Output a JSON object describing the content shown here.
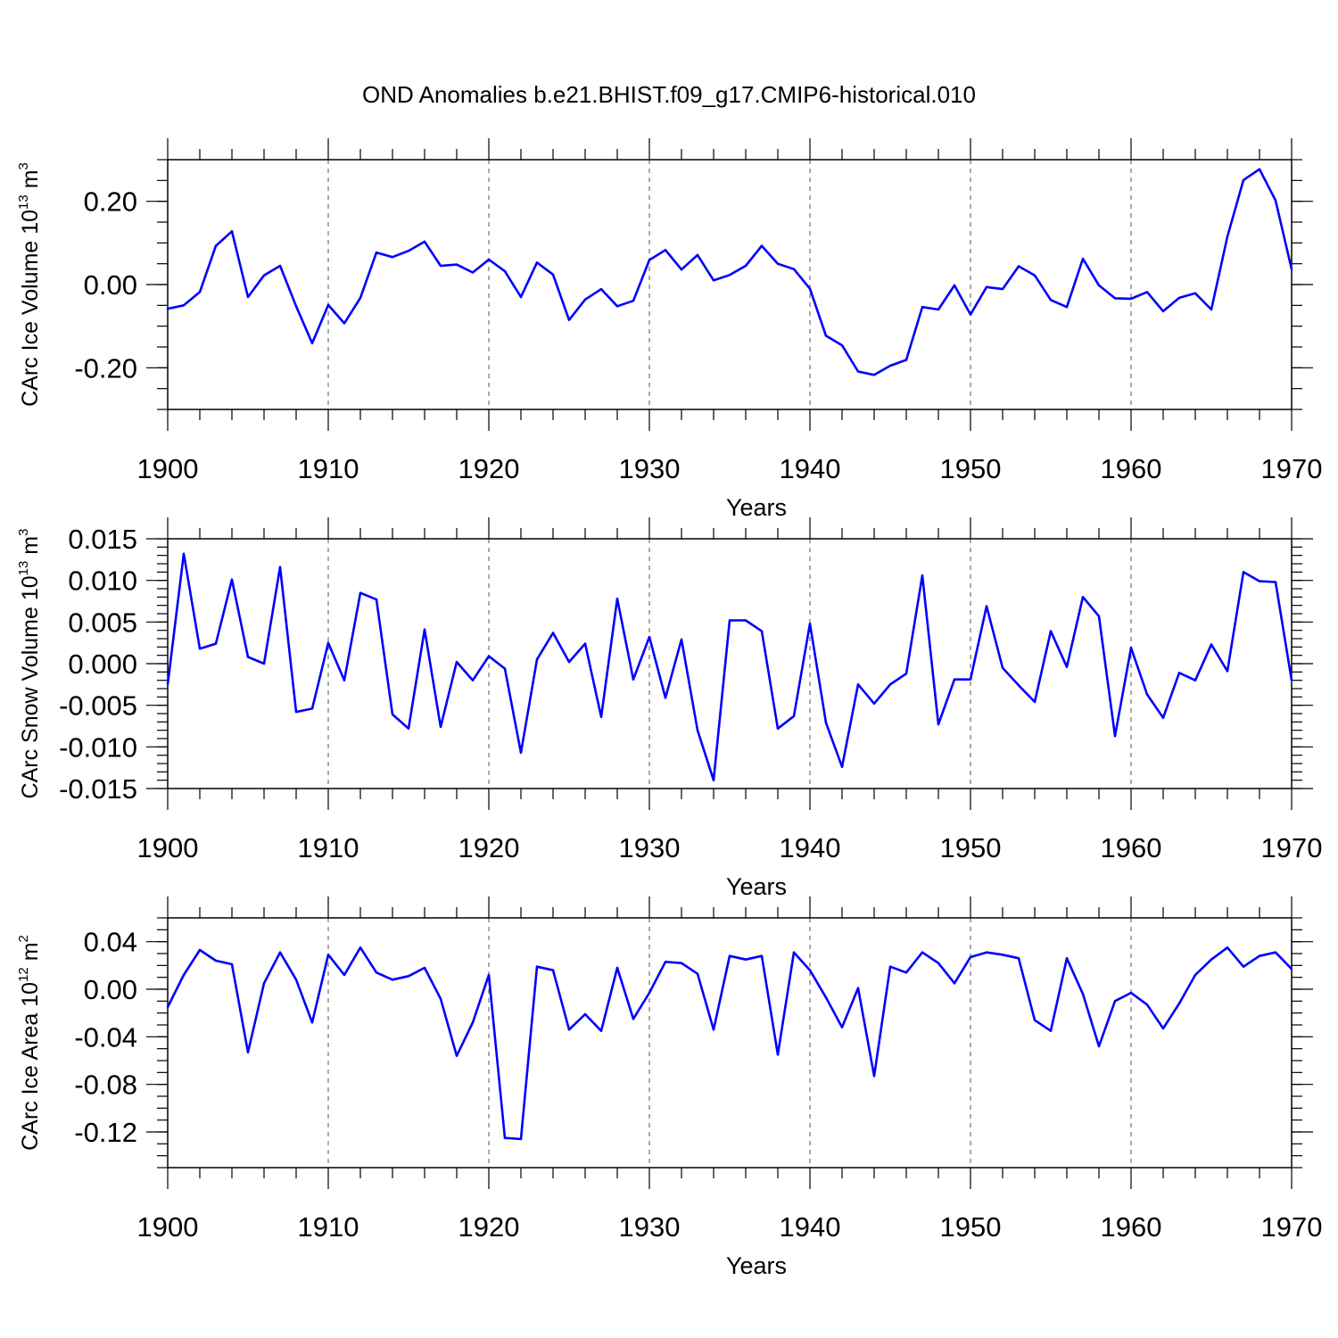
{
  "title": "OND Anomalies b.e21.BHIST.f09_g17.CMIP6-historical.010",
  "chart_data": [
    {
      "type": "line",
      "ylabel": "CArc Ice Volume 10",
      "ylabel_exp": "13",
      "ylabel_unit": " m",
      "ylabel_unit_exp": "3",
      "xlabel": "Years",
      "xlim": [
        1900,
        1970
      ],
      "ylim": [
        -0.3,
        0.3
      ],
      "yticks": [
        -0.2,
        0.0,
        0.2
      ],
      "ytick_labels": [
        "-0.20",
        "0.00",
        "0.20"
      ],
      "yminor_step": 0.05,
      "xticks": [
        1900,
        1910,
        1920,
        1930,
        1940,
        1950,
        1960,
        1970
      ],
      "xtick_labels": [
        "1900",
        "1910",
        "1920",
        "1930",
        "1940",
        "1950",
        "1960",
        "1970"
      ],
      "series": [
        {
          "name": "CArc Ice Volume",
          "color": "#0000ff",
          "x": [
            1900,
            1901,
            1902,
            1903,
            1904,
            1905,
            1906,
            1907,
            1908,
            1909,
            1910,
            1911,
            1912,
            1913,
            1914,
            1915,
            1916,
            1917,
            1918,
            1919,
            1920,
            1921,
            1922,
            1923,
            1924,
            1925,
            1926,
            1927,
            1928,
            1929,
            1930,
            1931,
            1932,
            1933,
            1934,
            1935,
            1936,
            1937,
            1938,
            1939,
            1940,
            1941,
            1942,
            1943,
            1944,
            1945,
            1946,
            1947,
            1948,
            1949,
            1950,
            1951,
            1952,
            1953,
            1954,
            1955,
            1956,
            1957,
            1958,
            1959,
            1960,
            1961,
            1962,
            1963,
            1964,
            1965,
            1966,
            1967,
            1968,
            1969,
            1970
          ],
          "values": [
            -0.058,
            -0.05,
            -0.018,
            0.093,
            0.128,
            -0.03,
            0.022,
            0.045,
            -0.052,
            -0.141,
            -0.049,
            -0.093,
            -0.032,
            0.077,
            0.066,
            0.081,
            0.103,
            0.045,
            0.048,
            0.029,
            0.06,
            0.032,
            -0.03,
            0.053,
            0.024,
            -0.085,
            -0.036,
            -0.011,
            -0.052,
            -0.039,
            0.059,
            0.083,
            0.036,
            0.071,
            0.01,
            0.023,
            0.045,
            0.093,
            0.05,
            0.037,
            -0.01,
            -0.123,
            -0.146,
            -0.209,
            -0.217,
            -0.195,
            -0.181,
            -0.054,
            -0.06,
            -0.002,
            -0.072,
            -0.006,
            -0.011,
            0.044,
            0.022,
            -0.037,
            -0.054,
            0.062,
            -0.002,
            -0.033,
            -0.034,
            -0.018,
            -0.064,
            -0.032,
            -0.021,
            -0.06,
            0.115,
            0.251,
            0.277,
            0.202,
            0.037
          ]
        }
      ]
    },
    {
      "type": "line",
      "ylabel": "CArc Snow Volume 10",
      "ylabel_exp": "13",
      "ylabel_unit": " m",
      "ylabel_unit_exp": "3",
      "xlabel": "Years",
      "xlim": [
        1900,
        1970
      ],
      "ylim": [
        -0.015,
        0.015
      ],
      "yticks": [
        -0.015,
        -0.01,
        -0.005,
        0.0,
        0.005,
        0.01,
        0.015
      ],
      "ytick_labels": [
        "-0.015",
        "-0.010",
        "-0.005",
        "0.000",
        "0.005",
        "0.010",
        "0.015"
      ],
      "yminor_step": 0.001,
      "xticks": [
        1900,
        1910,
        1920,
        1930,
        1940,
        1950,
        1960,
        1970
      ],
      "xtick_labels": [
        "1900",
        "1910",
        "1920",
        "1930",
        "1940",
        "1950",
        "1960",
        "1970"
      ],
      "series": [
        {
          "name": "CArc Snow Volume",
          "color": "#0000ff",
          "x": [
            1900,
            1901,
            1902,
            1903,
            1904,
            1905,
            1906,
            1907,
            1908,
            1909,
            1910,
            1911,
            1912,
            1913,
            1914,
            1915,
            1916,
            1917,
            1918,
            1919,
            1920,
            1921,
            1922,
            1923,
            1924,
            1925,
            1926,
            1927,
            1928,
            1929,
            1930,
            1931,
            1932,
            1933,
            1934,
            1935,
            1936,
            1937,
            1938,
            1939,
            1940,
            1941,
            1942,
            1943,
            1944,
            1945,
            1946,
            1947,
            1948,
            1949,
            1950,
            1951,
            1952,
            1953,
            1954,
            1955,
            1956,
            1957,
            1958,
            1959,
            1960,
            1961,
            1962,
            1963,
            1964,
            1965,
            1966,
            1967,
            1968,
            1969,
            1970
          ],
          "values": [
            -0.0025,
            0.0132,
            0.0018,
            0.0024,
            0.0101,
            0.0008,
            0.0,
            0.0116,
            -0.0058,
            -0.0054,
            0.0025,
            -0.002,
            0.0085,
            0.0077,
            -0.0061,
            -0.0078,
            0.0041,
            -0.0076,
            0.0002,
            -0.002,
            0.0009,
            -0.0006,
            -0.0107,
            0.0005,
            0.0037,
            0.0002,
            0.0024,
            -0.0064,
            0.0078,
            -0.0019,
            0.0032,
            -0.0041,
            0.0029,
            -0.008,
            -0.014,
            0.0052,
            0.0052,
            0.0039,
            -0.0078,
            -0.0063,
            0.0048,
            -0.0071,
            -0.0124,
            -0.0025,
            -0.0048,
            -0.0025,
            -0.0012,
            0.0106,
            -0.0073,
            -0.0019,
            -0.0019,
            0.0069,
            -0.0005,
            -0.0026,
            -0.0046,
            0.0039,
            -0.0004,
            0.008,
            0.0057,
            -0.0087,
            0.0019,
            -0.0037,
            -0.0065,
            -0.0011,
            -0.002,
            0.0023,
            -0.0009,
            0.011,
            0.0099,
            0.0098,
            -0.002
          ]
        }
      ]
    },
    {
      "type": "line",
      "ylabel": "CArc Ice Area 10",
      "ylabel_exp": "12",
      "ylabel_unit": " m",
      "ylabel_unit_exp": "2",
      "xlabel": "Years",
      "xlim": [
        1900,
        1970
      ],
      "ylim": [
        -0.15,
        0.06
      ],
      "yticks": [
        -0.12,
        -0.08,
        -0.04,
        0.0,
        0.04
      ],
      "ytick_labels": [
        "-0.12",
        "-0.08",
        "-0.04",
        "0.00",
        "0.04"
      ],
      "yminor_step": 0.01,
      "xticks": [
        1900,
        1910,
        1920,
        1930,
        1940,
        1950,
        1960,
        1970
      ],
      "xtick_labels": [
        "1900",
        "1910",
        "1920",
        "1930",
        "1940",
        "1950",
        "1960",
        "1970"
      ],
      "series": [
        {
          "name": "CArc Ice Area",
          "color": "#0000ff",
          "x": [
            1900,
            1901,
            1902,
            1903,
            1904,
            1905,
            1906,
            1907,
            1908,
            1909,
            1910,
            1911,
            1912,
            1913,
            1914,
            1915,
            1916,
            1917,
            1918,
            1919,
            1920,
            1921,
            1922,
            1923,
            1924,
            1925,
            1926,
            1927,
            1928,
            1929,
            1930,
            1931,
            1932,
            1933,
            1934,
            1935,
            1936,
            1937,
            1938,
            1939,
            1940,
            1941,
            1942,
            1943,
            1944,
            1945,
            1946,
            1947,
            1948,
            1949,
            1950,
            1951,
            1952,
            1953,
            1954,
            1955,
            1956,
            1957,
            1958,
            1959,
            1960,
            1961,
            1962,
            1963,
            1964,
            1965,
            1966,
            1967,
            1968,
            1969,
            1970
          ],
          "values": [
            -0.015,
            0.012,
            0.033,
            0.024,
            0.021,
            -0.053,
            0.005,
            0.031,
            0.008,
            -0.028,
            0.029,
            0.012,
            0.035,
            0.014,
            0.008,
            0.011,
            0.018,
            -0.008,
            -0.056,
            -0.028,
            0.012,
            -0.125,
            -0.126,
            0.019,
            0.016,
            -0.034,
            -0.021,
            -0.035,
            0.018,
            -0.025,
            -0.003,
            0.023,
            0.022,
            0.013,
            -0.034,
            0.028,
            0.025,
            0.028,
            -0.055,
            0.031,
            0.016,
            -0.007,
            -0.032,
            0.001,
            -0.073,
            0.019,
            0.014,
            0.031,
            0.022,
            0.005,
            0.027,
            0.031,
            0.029,
            0.026,
            -0.026,
            -0.035,
            0.026,
            -0.004,
            -0.048,
            -0.01,
            -0.003,
            -0.013,
            -0.033,
            -0.012,
            0.012,
            0.025,
            0.035,
            0.019,
            0.028,
            0.031,
            0.017
          ]
        }
      ]
    }
  ]
}
